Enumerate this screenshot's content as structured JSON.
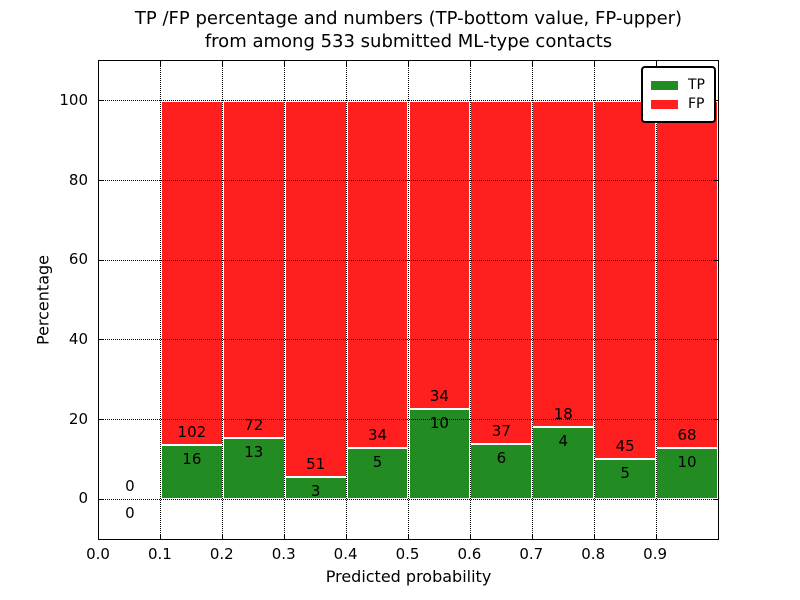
{
  "chart_data": {
    "type": "bar",
    "subtype": "stacked-percentage-histogram",
    "title_line1": "TP /FP percentage and numbers (TP-bottom value, FP-upper)",
    "title_line2": "from among 533 submitted ML-type contacts",
    "xlabel": "Predicted probability",
    "ylabel": "Percentage",
    "total_contacts": 533,
    "xlim": [
      0.0,
      1.0
    ],
    "ylim": [
      -10,
      110
    ],
    "x_ticks": [
      "0.0",
      "0.1",
      "0.2",
      "0.3",
      "0.4",
      "0.5",
      "0.6",
      "0.7",
      "0.8",
      "0.9"
    ],
    "y_ticks": [
      "0",
      "20",
      "40",
      "60",
      "80",
      "100"
    ],
    "grid": "dotted",
    "legend_position": "upper right",
    "series": [
      {
        "name": "TP",
        "color": "#228B22"
      },
      {
        "name": "FP",
        "color": "#FF1F1F"
      }
    ],
    "bins": [
      {
        "x_start": 0.0,
        "x_end": 0.1,
        "tp_count": 0,
        "fp_count": 0,
        "tp_pct": 0
      },
      {
        "x_start": 0.1,
        "x_end": 0.2,
        "tp_count": 16,
        "fp_count": 102,
        "tp_pct": 13.56
      },
      {
        "x_start": 0.2,
        "x_end": 0.3,
        "tp_count": 13,
        "fp_count": 72,
        "tp_pct": 15.29
      },
      {
        "x_start": 0.3,
        "x_end": 0.4,
        "tp_count": 3,
        "fp_count": 51,
        "tp_pct": 5.56
      },
      {
        "x_start": 0.4,
        "x_end": 0.5,
        "tp_count": 5,
        "fp_count": 34,
        "tp_pct": 12.82
      },
      {
        "x_start": 0.5,
        "x_end": 0.6,
        "tp_count": 10,
        "fp_count": 34,
        "tp_pct": 22.73
      },
      {
        "x_start": 0.6,
        "x_end": 0.7,
        "tp_count": 6,
        "fp_count": 37,
        "tp_pct": 13.95
      },
      {
        "x_start": 0.7,
        "x_end": 0.8,
        "tp_count": 4,
        "fp_count": 18,
        "tp_pct": 18.18
      },
      {
        "x_start": 0.8,
        "x_end": 0.9,
        "tp_count": 5,
        "fp_count": 45,
        "tp_pct": 10.0
      },
      {
        "x_start": 0.9,
        "x_end": 1.0,
        "tp_count": 10,
        "fp_count": 68,
        "tp_pct": 12.82
      }
    ],
    "colors": {
      "tp_green": "#228B22",
      "fp_red": "#FF1F1F",
      "bar_edge": "#ffffff",
      "grid": "#000000",
      "text": "#000000",
      "background": "#ffffff"
    }
  }
}
